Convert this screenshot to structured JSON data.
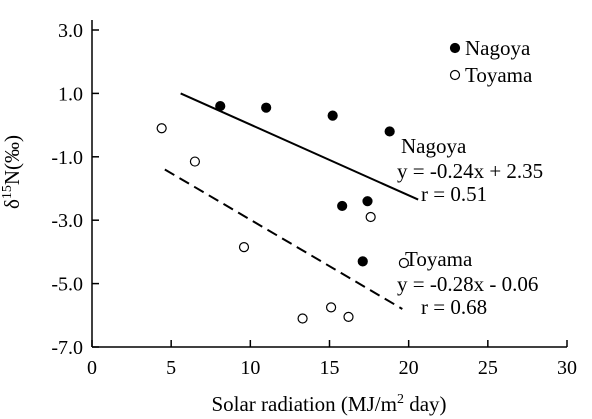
{
  "chart_data": {
    "type": "scatter",
    "xlabel": "Solar radiation (MJ/m² day)",
    "ylabel": "δ15N(‰)",
    "xlim": [
      0,
      30
    ],
    "ylim": [
      -7.0,
      3.0
    ],
    "xticks": [
      "0",
      "5",
      "10",
      "15",
      "20",
      "25",
      "30"
    ],
    "yticks": [
      "3.0",
      "1.0",
      "-1.0",
      "-3.0",
      "-5.0",
      "-7.0"
    ],
    "grid": false,
    "legend_position": "top-right",
    "series": [
      {
        "name": "Nagoya",
        "marker": "filled-circle",
        "color": "#000000",
        "points": [
          {
            "x": 8.1,
            "y": 0.6
          },
          {
            "x": 11.0,
            "y": 0.55
          },
          {
            "x": 15.2,
            "y": 0.3
          },
          {
            "x": 18.8,
            "y": -0.2
          },
          {
            "x": 17.4,
            "y": -2.4
          },
          {
            "x": 15.8,
            "y": -2.55
          },
          {
            "x": 17.1,
            "y": -4.3
          }
        ],
        "fit": {
          "x": [
            5.6,
            20.6
          ],
          "y": [
            1.0,
            -2.35
          ],
          "style": "solid"
        }
      },
      {
        "name": "Toyama",
        "marker": "open-circle",
        "color": "#000000",
        "points": [
          {
            "x": 4.4,
            "y": -0.1
          },
          {
            "x": 6.5,
            "y": -1.15
          },
          {
            "x": 9.6,
            "y": -3.85
          },
          {
            "x": 17.6,
            "y": -2.9
          },
          {
            "x": 19.7,
            "y": -4.35
          },
          {
            "x": 15.1,
            "y": -5.75
          },
          {
            "x": 16.2,
            "y": -6.05
          },
          {
            "x": 13.3,
            "y": -6.1
          }
        ],
        "fit": {
          "x": [
            4.6,
            19.6
          ],
          "y": [
            -1.4,
            -5.8
          ],
          "style": "dashed"
        }
      }
    ],
    "annotations": [
      {
        "group": "Nagoya",
        "lines": [
          "Nagoya",
          "y = -0.24x + 2.35",
          "r = 0.51"
        ]
      },
      {
        "group": "Toyama",
        "lines": [
          "Toyama",
          "y = -0.28x - 0.06",
          "r = 0.68"
        ]
      }
    ]
  }
}
